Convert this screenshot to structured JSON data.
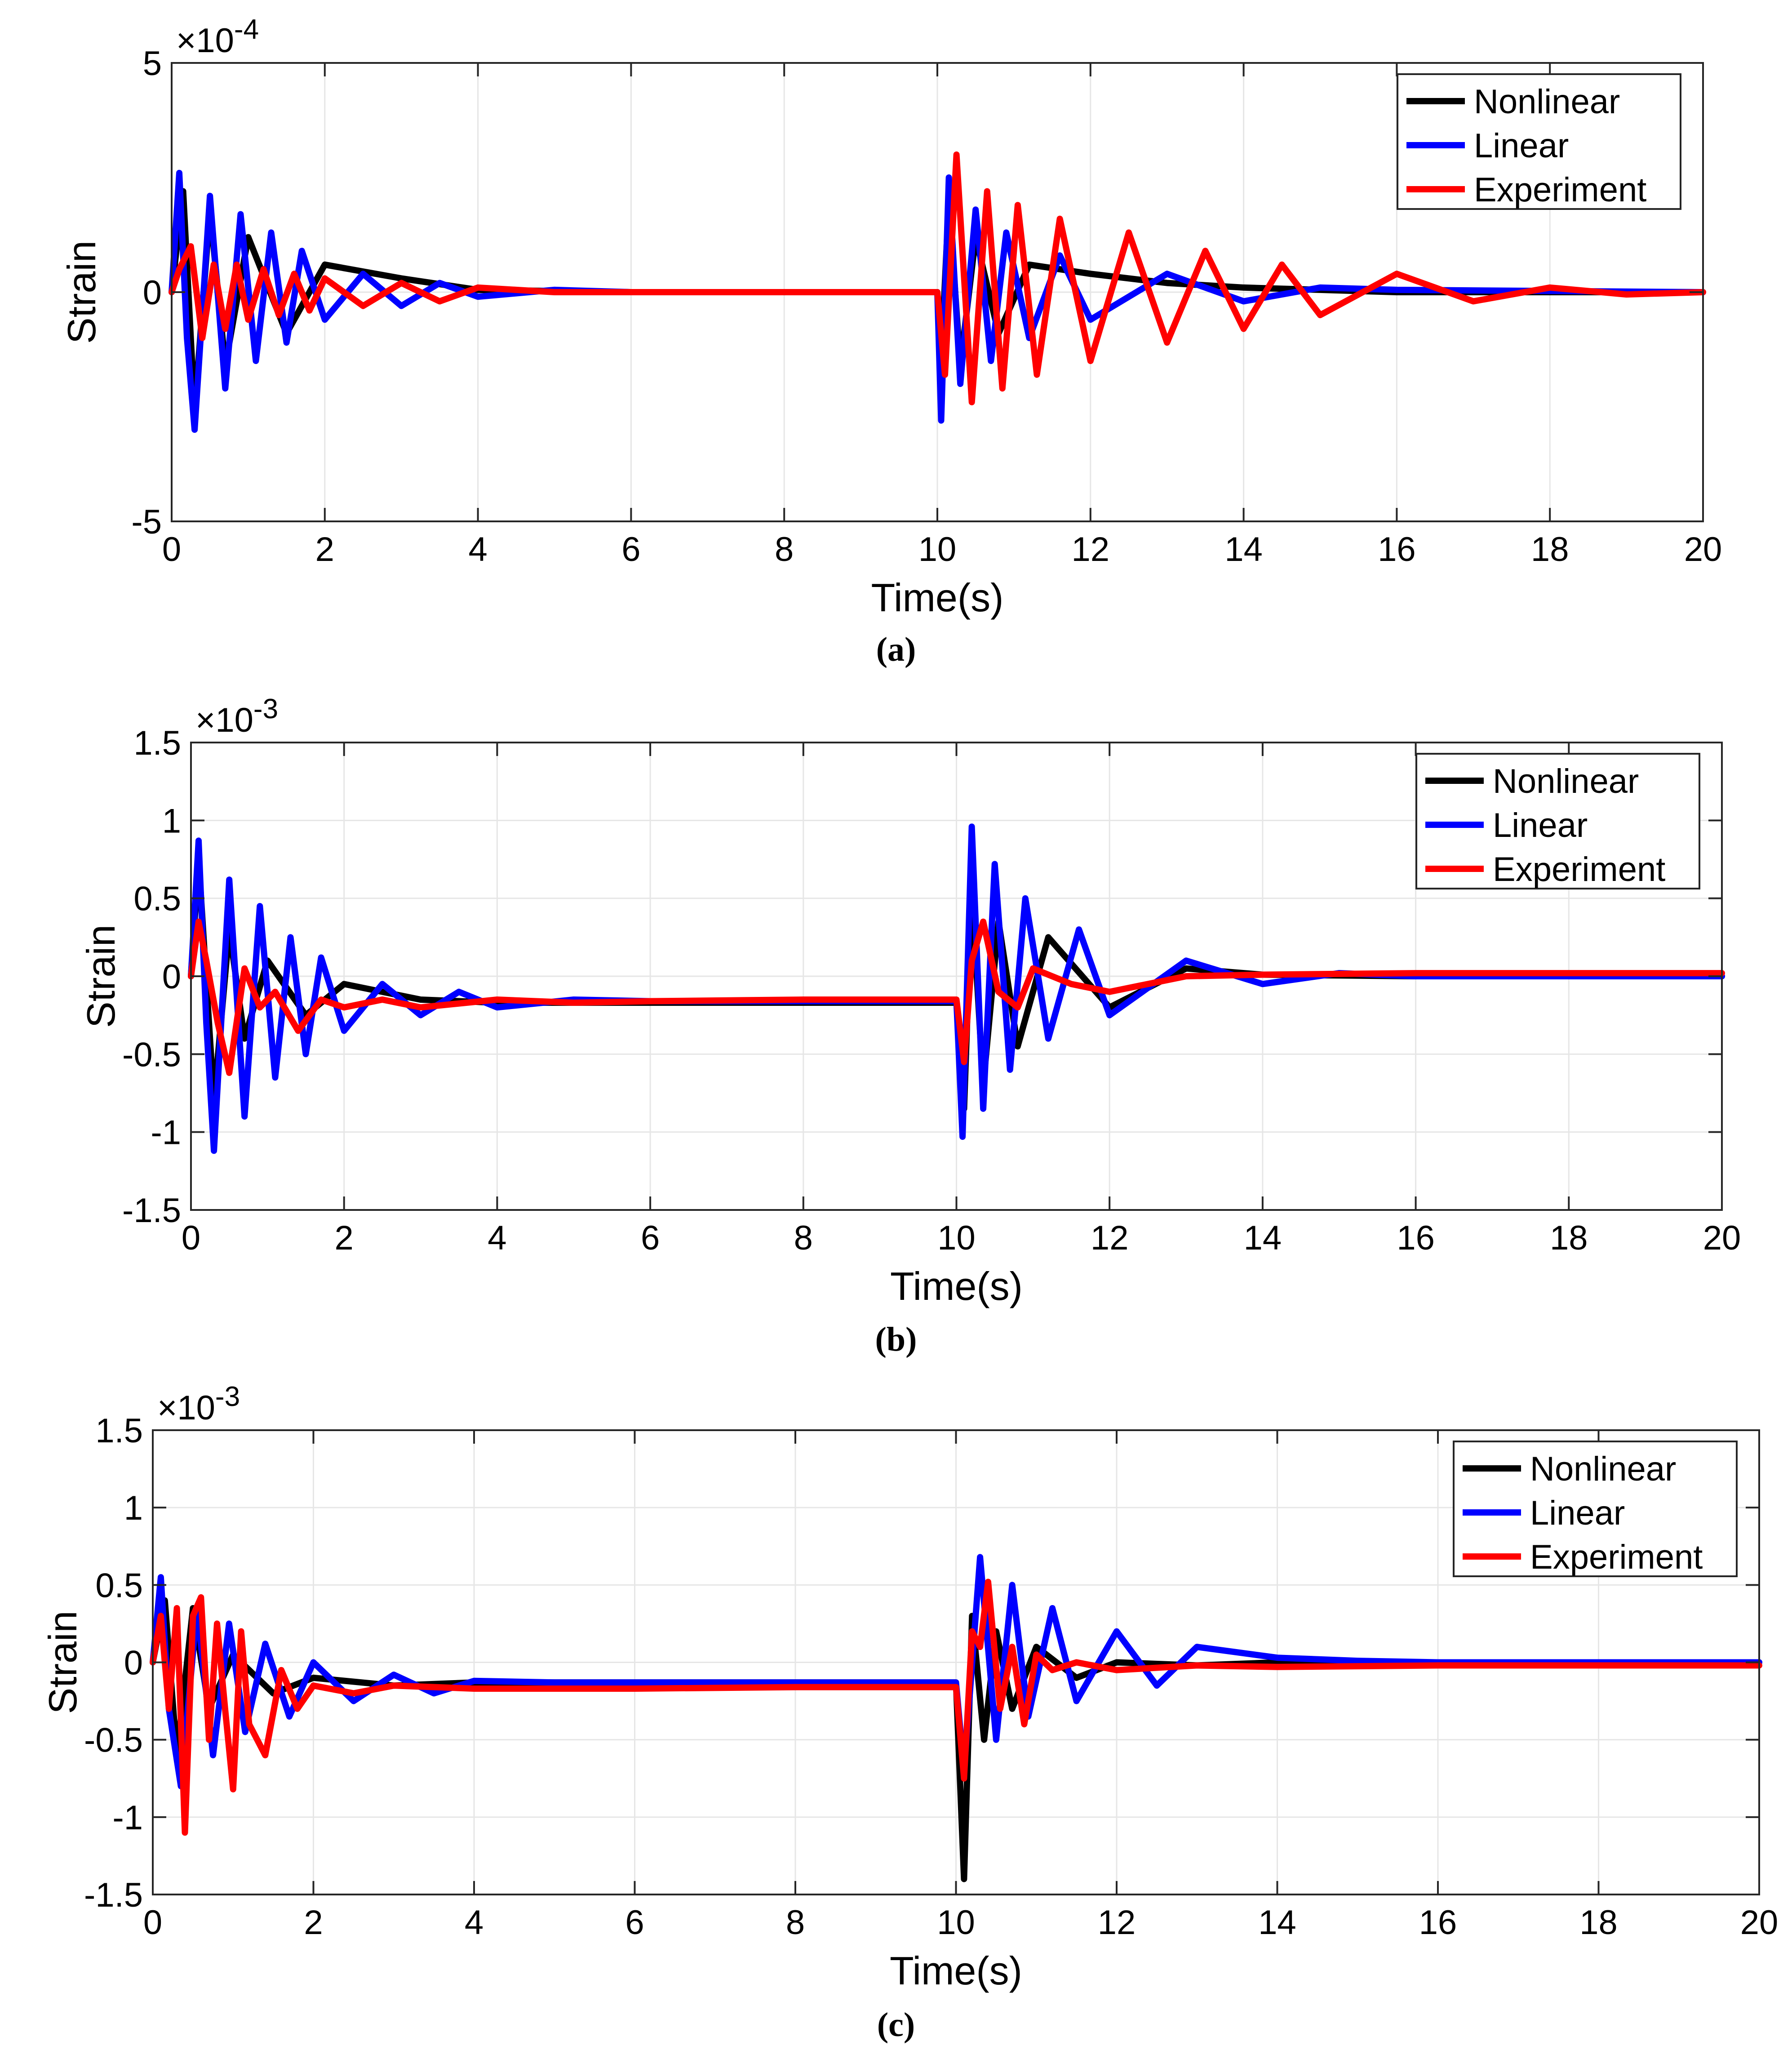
{
  "legend_labels": [
    "Nonlinear",
    "Linear",
    "Experiment"
  ],
  "colors": {
    "Nonlinear": "#000000",
    "Linear": "#0000ff",
    "Experiment": "#ff0000",
    "grid": "#e6e6e6",
    "axis": "#262626"
  },
  "chart_data": [
    {
      "type": "line",
      "caption": "(a)",
      "xlabel": "Time(s)",
      "ylabel": "Strain",
      "exponent_label": "×10",
      "exponent_power": "-4",
      "xlim": [
        0,
        20
      ],
      "ylim": [
        -5,
        5
      ],
      "xticks": [
        0,
        2,
        4,
        6,
        8,
        10,
        12,
        14,
        16,
        18,
        20
      ],
      "yticks": [
        -5,
        0,
        5
      ],
      "xticklabels": [
        "0",
        "2",
        "4",
        "6",
        "8",
        "10",
        "12",
        "14",
        "16",
        "18",
        "20"
      ],
      "yticklabels": [
        "-5",
        "0",
        "5"
      ],
      "grid": true,
      "legend_position": "top-right",
      "series": [
        {
          "name": "Nonlinear",
          "color": "#000000",
          "x": [
            0,
            0.15,
            0.3,
            0.5,
            0.7,
            1.0,
            1.5,
            2.0,
            3.0,
            4.0,
            6.0,
            8.0,
            10.0,
            10.05,
            10.15,
            10.3,
            10.5,
            10.8,
            11.2,
            12,
            13,
            14,
            16,
            20
          ],
          "y": [
            0,
            2.2,
            -2.6,
            1.8,
            -1.6,
            1.2,
            -0.9,
            0.6,
            0.3,
            0.05,
            0,
            0,
            0,
            -1.5,
            2.0,
            -1.6,
            1.2,
            -0.9,
            0.6,
            0.4,
            0.2,
            0.1,
            0,
            0
          ]
        },
        {
          "name": "Linear",
          "color": "#0000ff",
          "x": [
            0,
            0.1,
            0.2,
            0.3,
            0.5,
            0.7,
            0.9,
            1.1,
            1.3,
            1.5,
            1.7,
            2.0,
            2.5,
            3.0,
            3.5,
            4.0,
            5.0,
            6.0,
            8.0,
            10.0,
            10.05,
            10.15,
            10.3,
            10.5,
            10.7,
            10.9,
            11.2,
            11.6,
            12.0,
            13.0,
            14.0,
            15.0,
            16.0,
            20.0
          ],
          "y": [
            0,
            2.6,
            -1.0,
            -3.0,
            2.1,
            -2.1,
            1.7,
            -1.5,
            1.3,
            -1.1,
            0.9,
            -0.6,
            0.4,
            -0.3,
            0.2,
            -0.1,
            0.05,
            0,
            0,
            0,
            -2.8,
            2.5,
            -2.0,
            1.8,
            -1.5,
            1.3,
            -1.0,
            0.8,
            -0.6,
            0.4,
            -0.2,
            0.1,
            0.05,
            0
          ]
        },
        {
          "name": "Experiment",
          "color": "#ff0000",
          "x": [
            0,
            0.1,
            0.25,
            0.4,
            0.55,
            0.7,
            0.85,
            1.0,
            1.2,
            1.4,
            1.6,
            1.8,
            2.0,
            2.5,
            3.0,
            3.5,
            4.0,
            5.0,
            6.0,
            8.0,
            10.0,
            10.1,
            10.25,
            10.45,
            10.65,
            10.85,
            11.05,
            11.3,
            11.6,
            12.0,
            12.5,
            13.0,
            13.5,
            14.0,
            14.5,
            15.0,
            16.0,
            17.0,
            18.0,
            19.0,
            20.0
          ],
          "y": [
            0,
            0.5,
            1.0,
            -1.0,
            0.6,
            -0.8,
            0.6,
            -0.6,
            0.5,
            -0.5,
            0.4,
            -0.4,
            0.3,
            -0.3,
            0.2,
            -0.2,
            0.1,
            0,
            0,
            0,
            0,
            -1.8,
            3.0,
            -2.4,
            2.2,
            -2.1,
            1.9,
            -1.8,
            1.6,
            -1.5,
            1.3,
            -1.1,
            0.9,
            -0.8,
            0.6,
            -0.5,
            0.4,
            -0.2,
            0.1,
            -0.05,
            0
          ]
        }
      ]
    },
    {
      "type": "line",
      "caption": "(b)",
      "xlabel": "Time(s)",
      "ylabel": "Strain",
      "exponent_label": "×10",
      "exponent_power": "-3",
      "xlim": [
        0,
        20
      ],
      "ylim": [
        -1.5,
        1.5
      ],
      "xticks": [
        0,
        2,
        4,
        6,
        8,
        10,
        12,
        14,
        16,
        18,
        20
      ],
      "yticks": [
        -1.5,
        -1,
        -0.5,
        0,
        0.5,
        1,
        1.5
      ],
      "xticklabels": [
        "0",
        "2",
        "4",
        "6",
        "8",
        "10",
        "12",
        "14",
        "16",
        "18",
        "20"
      ],
      "yticklabels": [
        "-1.5",
        "-1",
        "-0.5",
        "0",
        "0.5",
        "1",
        "1.5"
      ],
      "grid": true,
      "legend_position": "top-right",
      "series": [
        {
          "name": "Nonlinear",
          "color": "#000000",
          "x": [
            0,
            0.1,
            0.3,
            0.5,
            0.7,
            1.0,
            1.5,
            2.0,
            3.0,
            4.0,
            6.0,
            8.0,
            10.0,
            10.1,
            10.2,
            10.35,
            10.55,
            10.8,
            11.2,
            12.0,
            13.0,
            14.0,
            16.0,
            20.0
          ],
          "y": [
            0,
            0.75,
            -0.8,
            0.3,
            -0.4,
            0.1,
            -0.25,
            -0.05,
            -0.15,
            -0.17,
            -0.17,
            -0.17,
            -0.17,
            -0.85,
            0.55,
            -0.7,
            0.35,
            -0.45,
            0.25,
            -0.2,
            0.05,
            0.01,
            0,
            0
          ]
        },
        {
          "name": "Linear",
          "color": "#0000ff",
          "x": [
            0,
            0.1,
            0.2,
            0.3,
            0.5,
            0.7,
            0.9,
            1.1,
            1.3,
            1.5,
            1.7,
            2.0,
            2.5,
            3.0,
            3.5,
            4.0,
            5.0,
            6.0,
            8.0,
            10.0,
            10.08,
            10.2,
            10.35,
            10.5,
            10.7,
            10.9,
            11.2,
            11.6,
            12.0,
            13.0,
            14.0,
            15.0,
            16.0,
            20.0
          ],
          "y": [
            0,
            0.87,
            -0.3,
            -1.12,
            0.62,
            -0.9,
            0.45,
            -0.65,
            0.25,
            -0.5,
            0.12,
            -0.35,
            -0.05,
            -0.25,
            -0.1,
            -0.2,
            -0.15,
            -0.16,
            -0.16,
            -0.16,
            -1.03,
            0.96,
            -0.85,
            0.72,
            -0.6,
            0.5,
            -0.4,
            0.3,
            -0.25,
            0.1,
            -0.05,
            0.02,
            0,
            0
          ]
        },
        {
          "name": "Experiment",
          "color": "#ff0000",
          "x": [
            0,
            0.1,
            0.2,
            0.35,
            0.5,
            0.7,
            0.9,
            1.1,
            1.4,
            1.7,
            2.0,
            2.5,
            3.0,
            4.0,
            5.0,
            6.0,
            8.0,
            10.0,
            10.1,
            10.2,
            10.35,
            10.55,
            10.8,
            11.0,
            11.5,
            12.0,
            13.0,
            14.0,
            16.0,
            20.0
          ],
          "y": [
            0,
            0.35,
            0.1,
            -0.3,
            -0.62,
            0.05,
            -0.2,
            -0.1,
            -0.35,
            -0.15,
            -0.2,
            -0.15,
            -0.2,
            -0.15,
            -0.17,
            -0.16,
            -0.15,
            -0.15,
            -0.55,
            0.1,
            0.35,
            -0.1,
            -0.2,
            0.05,
            -0.05,
            -0.1,
            0.0,
            0.01,
            0.02,
            0.02
          ]
        }
      ]
    },
    {
      "type": "line",
      "caption": "(c)",
      "xlabel": "Time(s)",
      "ylabel": "Strain",
      "exponent_label": "×10",
      "exponent_power": "-3",
      "xlim": [
        0,
        20
      ],
      "ylim": [
        -1.5,
        1.5
      ],
      "xticks": [
        0,
        2,
        4,
        6,
        8,
        10,
        12,
        14,
        16,
        18,
        20
      ],
      "yticks": [
        -1.5,
        -1,
        -0.5,
        0,
        0.5,
        1,
        1.5
      ],
      "xticklabels": [
        "0",
        "2",
        "4",
        "6",
        "8",
        "10",
        "12",
        "14",
        "16",
        "18",
        "20"
      ],
      "yticklabels": [
        "-1.5",
        "-1",
        "-0.5",
        "0",
        "0.5",
        "1",
        "1.5"
      ],
      "grid": true,
      "legend_position": "top-right",
      "series": [
        {
          "name": "Nonlinear",
          "color": "#000000",
          "x": [
            0,
            0.15,
            0.3,
            0.5,
            0.7,
            1.0,
            1.5,
            2.0,
            3.0,
            4.0,
            6.0,
            8.0,
            10.0,
            10.1,
            10.2,
            10.35,
            10.5,
            10.7,
            11.0,
            11.5,
            12.0,
            13.0,
            14.0,
            16.0,
            20.0
          ],
          "y": [
            0,
            0.4,
            -0.6,
            0.35,
            -0.3,
            0.05,
            -0.2,
            -0.1,
            -0.15,
            -0.13,
            -0.13,
            -0.13,
            -0.13,
            -1.4,
            0.3,
            -0.5,
            0.2,
            -0.3,
            0.1,
            -0.1,
            0.0,
            -0.02,
            0,
            0,
            0
          ]
        },
        {
          "name": "Linear",
          "color": "#0000ff",
          "x": [
            0,
            0.1,
            0.2,
            0.35,
            0.55,
            0.75,
            0.95,
            1.15,
            1.4,
            1.7,
            2.0,
            2.5,
            3.0,
            3.5,
            4.0,
            5.0,
            6.0,
            8.0,
            10.0,
            10.1,
            10.3,
            10.5,
            10.7,
            10.9,
            11.2,
            11.5,
            12.0,
            12.5,
            13.0,
            14.0,
            15.0,
            16.0,
            20.0
          ],
          "y": [
            0,
            0.55,
            -0.3,
            -0.8,
            0.35,
            -0.6,
            0.25,
            -0.45,
            0.12,
            -0.35,
            0.0,
            -0.25,
            -0.08,
            -0.2,
            -0.12,
            -0.13,
            -0.13,
            -0.13,
            -0.13,
            -0.7,
            0.68,
            -0.5,
            0.5,
            -0.35,
            0.35,
            -0.25,
            0.2,
            -0.15,
            0.1,
            0.03,
            0.01,
            0,
            0
          ]
        },
        {
          "name": "Experiment",
          "color": "#ff0000",
          "x": [
            0,
            0.1,
            0.2,
            0.3,
            0.4,
            0.5,
            0.6,
            0.7,
            0.8,
            0.9,
            1.0,
            1.1,
            1.2,
            1.4,
            1.6,
            1.8,
            2.0,
            2.5,
            3.0,
            4.0,
            5.0,
            6.0,
            8.0,
            10.0,
            10.1,
            10.2,
            10.3,
            10.4,
            10.55,
            10.7,
            10.85,
            11.0,
            11.2,
            11.5,
            12.0,
            13.0,
            14.0,
            16.0,
            20.0
          ],
          "y": [
            0,
            0.3,
            -0.3,
            0.35,
            -1.1,
            0.3,
            0.42,
            -0.5,
            0.25,
            -0.3,
            -0.82,
            0.2,
            -0.4,
            -0.6,
            -0.05,
            -0.3,
            -0.15,
            -0.2,
            -0.15,
            -0.17,
            -0.17,
            -0.17,
            -0.16,
            -0.16,
            -0.75,
            0.2,
            0.1,
            0.52,
            -0.3,
            0.1,
            -0.4,
            0.05,
            -0.05,
            0.0,
            -0.05,
            -0.02,
            -0.03,
            -0.02,
            -0.02
          ]
        }
      ]
    }
  ]
}
